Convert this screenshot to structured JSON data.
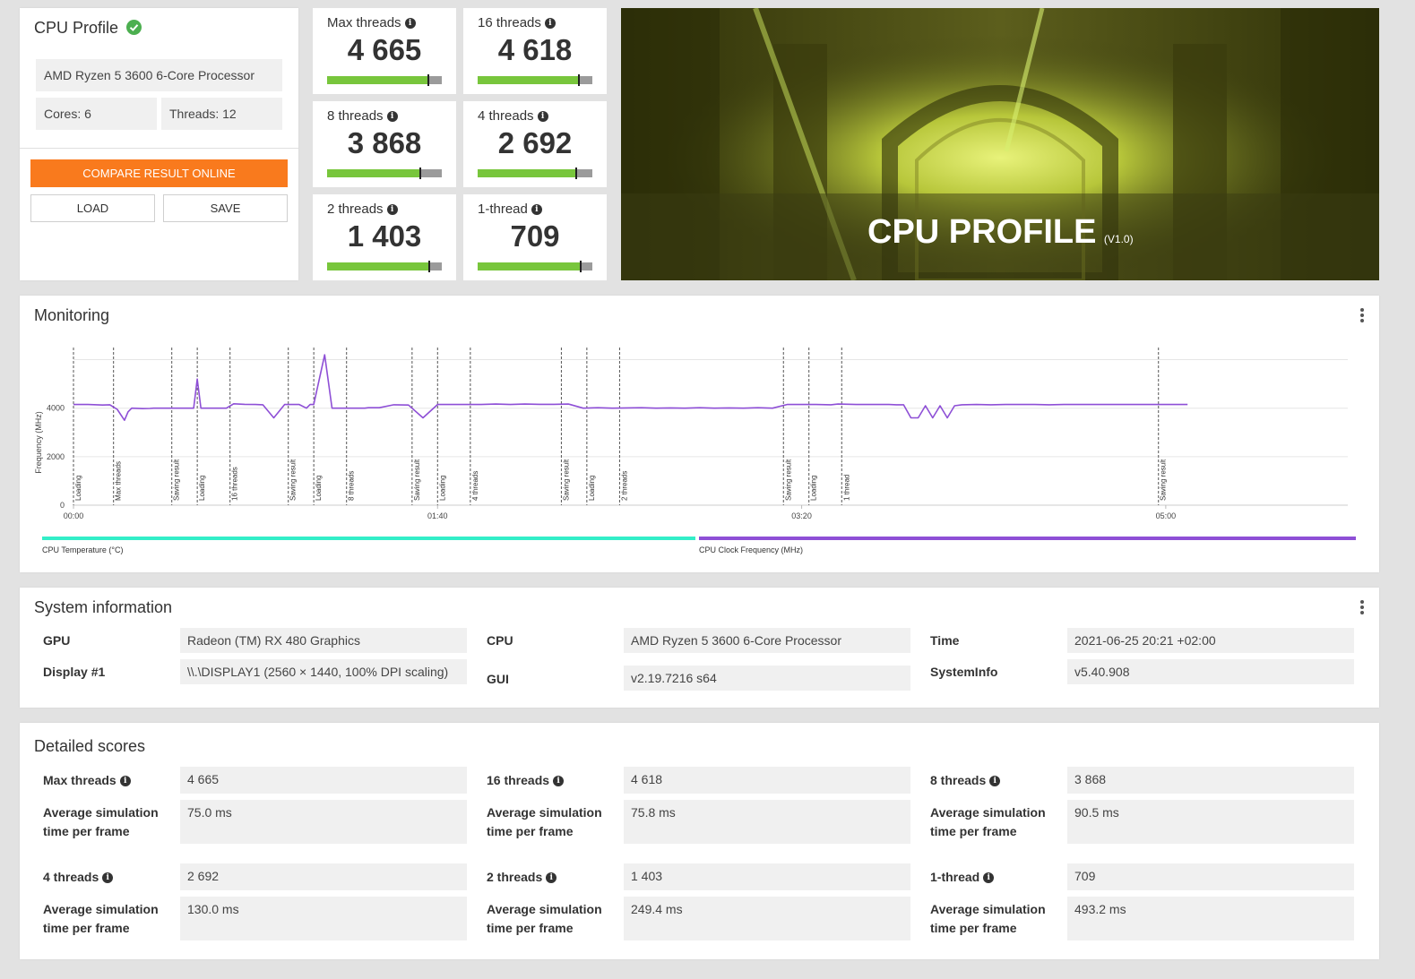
{
  "profile": {
    "title": "CPU Profile",
    "cpu_name": "AMD Ryzen 5 3600 6-Core Processor",
    "cores": "Cores: 6",
    "threads": "Threads: 12",
    "compare_label": "COMPARE RESULT ONLINE",
    "load_label": "LOAD",
    "save_label": "SAVE",
    "accent_color": "#f97a1d",
    "check_color": "#4caf50"
  },
  "scores": [
    {
      "label": "Max threads",
      "value": "4 665",
      "level": 0.88
    },
    {
      "label": "16 threads",
      "value": "4 618",
      "level": 0.88
    },
    {
      "label": "8 threads",
      "value": "3 868",
      "level": 0.81
    },
    {
      "label": "4 threads",
      "value": "2 692",
      "level": 0.86
    },
    {
      "label": "2 threads",
      "value": "1 403",
      "level": 0.89
    },
    {
      "label": "1-thread",
      "value": "709",
      "level": 0.9
    }
  ],
  "banner": {
    "title": "CPU PROFILE",
    "version": "(V1.0)"
  },
  "monitoring": {
    "title": "Monitoring",
    "legend_temperature": "CPU Temperature (°C)",
    "legend_clock": "CPU Clock Frequency (MHz)",
    "temperature_color": "#33eec8",
    "clock_color": "#8e4fd6"
  },
  "chart_data": {
    "type": "line",
    "ylabel": "Frequency (MHz)",
    "yticks": [
      "0",
      "2000",
      "4000"
    ],
    "ylim": [
      0,
      6500
    ],
    "xticks": [
      "00:00",
      "01:40",
      "03:20",
      "05:00"
    ],
    "xlim": [
      0,
      350
    ],
    "grid": true,
    "series": [
      {
        "name": "CPU Clock Frequency (MHz)",
        "x": [
          0,
          4,
          8,
          10,
          12,
          14,
          15,
          16,
          19,
          21,
          22,
          28,
          33,
          34,
          35,
          38,
          42,
          44,
          47,
          50,
          52,
          55,
          58,
          62,
          64,
          65,
          66,
          69,
          71,
          74,
          78,
          80,
          81,
          84,
          88,
          92,
          96,
          100,
          104,
          108,
          112,
          116,
          120,
          124,
          128,
          132,
          136,
          140,
          144,
          148,
          152,
          156,
          160,
          164,
          168,
          172,
          176,
          180,
          184,
          188,
          192,
          196,
          200,
          204,
          208,
          210,
          215,
          220,
          224,
          226,
          228,
          230,
          232,
          234,
          236,
          238,
          240,
          242,
          244,
          248,
          252,
          256,
          260,
          264,
          268,
          272,
          276,
          280,
          284,
          288,
          292,
          296,
          300,
          304,
          306
        ],
        "y": [
          4150,
          4150,
          4130,
          4140,
          3950,
          3500,
          3850,
          4000,
          3980,
          3990,
          4000,
          4000,
          4000,
          5200,
          4000,
          4000,
          4000,
          4180,
          4160,
          4150,
          4140,
          3600,
          4150,
          4150,
          4000,
          4150,
          4150,
          6200,
          4000,
          4000,
          4000,
          4000,
          4020,
          4020,
          4140,
          4130,
          3600,
          4150,
          4150,
          4150,
          4150,
          4170,
          4150,
          4170,
          4160,
          4160,
          4170,
          4000,
          4020,
          4000,
          4010,
          4020,
          4000,
          4010,
          4000,
          4020,
          4000,
          4010,
          4000,
          4020,
          4000,
          4150,
          4150,
          4150,
          4140,
          4170,
          4150,
          4150,
          4150,
          4140,
          4140,
          3600,
          3600,
          4100,
          3600,
          4100,
          3600,
          4100,
          4140,
          4150,
          4140,
          4150,
          4150,
          4150,
          4140,
          4150,
          4150,
          4150,
          4150,
          4150,
          4150,
          4150,
          4150,
          4150,
          4150
        ]
      }
    ],
    "annotations": [
      {
        "x": 0,
        "text": "Loading"
      },
      {
        "x": 11,
        "text": "Max threads"
      },
      {
        "x": 27,
        "text": "Saving result"
      },
      {
        "x": 34,
        "text": "Loading"
      },
      {
        "x": 43,
        "text": "16 threads"
      },
      {
        "x": 59,
        "text": "Saving result"
      },
      {
        "x": 66,
        "text": "Loading"
      },
      {
        "x": 75,
        "text": "8 threads"
      },
      {
        "x": 93,
        "text": "Saving result"
      },
      {
        "x": 100,
        "text": "Loading"
      },
      {
        "x": 109,
        "text": "4 threads"
      },
      {
        "x": 134,
        "text": "Saving result"
      },
      {
        "x": 141,
        "text": "Loading"
      },
      {
        "x": 150,
        "text": "2 threads"
      },
      {
        "x": 195,
        "text": "Saving result"
      },
      {
        "x": 202,
        "text": "Loading"
      },
      {
        "x": 211,
        "text": "1 thread"
      },
      {
        "x": 298,
        "text": "Saving result"
      }
    ]
  },
  "system": {
    "title": "System information",
    "gpu_label": "GPU",
    "gpu_value": "Radeon (TM) RX 480 Graphics",
    "display_label": "Display #1",
    "display_value": "\\\\.\\DISPLAY1 (2560 × 1440, 100% DPI scaling)",
    "cpu_label": "CPU",
    "cpu_value": "AMD Ryzen 5 3600 6-Core Processor",
    "gui_label": "GUI",
    "gui_value": "v2.19.7216 s64",
    "time_label": "Time",
    "time_value": "2021-06-25 20:21 +02:00",
    "sysinfo_label": "SystemInfo",
    "sysinfo_value": "v5.40.908"
  },
  "detailed": {
    "title": "Detailed scores",
    "avg_label": "Average simulation time per frame",
    "items": [
      {
        "label": "Max threads",
        "score": "4 665",
        "avg": "75.0 ms"
      },
      {
        "label": "16 threads",
        "score": "4 618",
        "avg": "75.8 ms"
      },
      {
        "label": "8 threads",
        "score": "3 868",
        "avg": "90.5 ms"
      },
      {
        "label": "4 threads",
        "score": "2 692",
        "avg": "130.0 ms"
      },
      {
        "label": "2 threads",
        "score": "1 403",
        "avg": "249.4 ms"
      },
      {
        "label": "1-thread",
        "score": "709",
        "avg": "493.2 ms"
      }
    ]
  }
}
